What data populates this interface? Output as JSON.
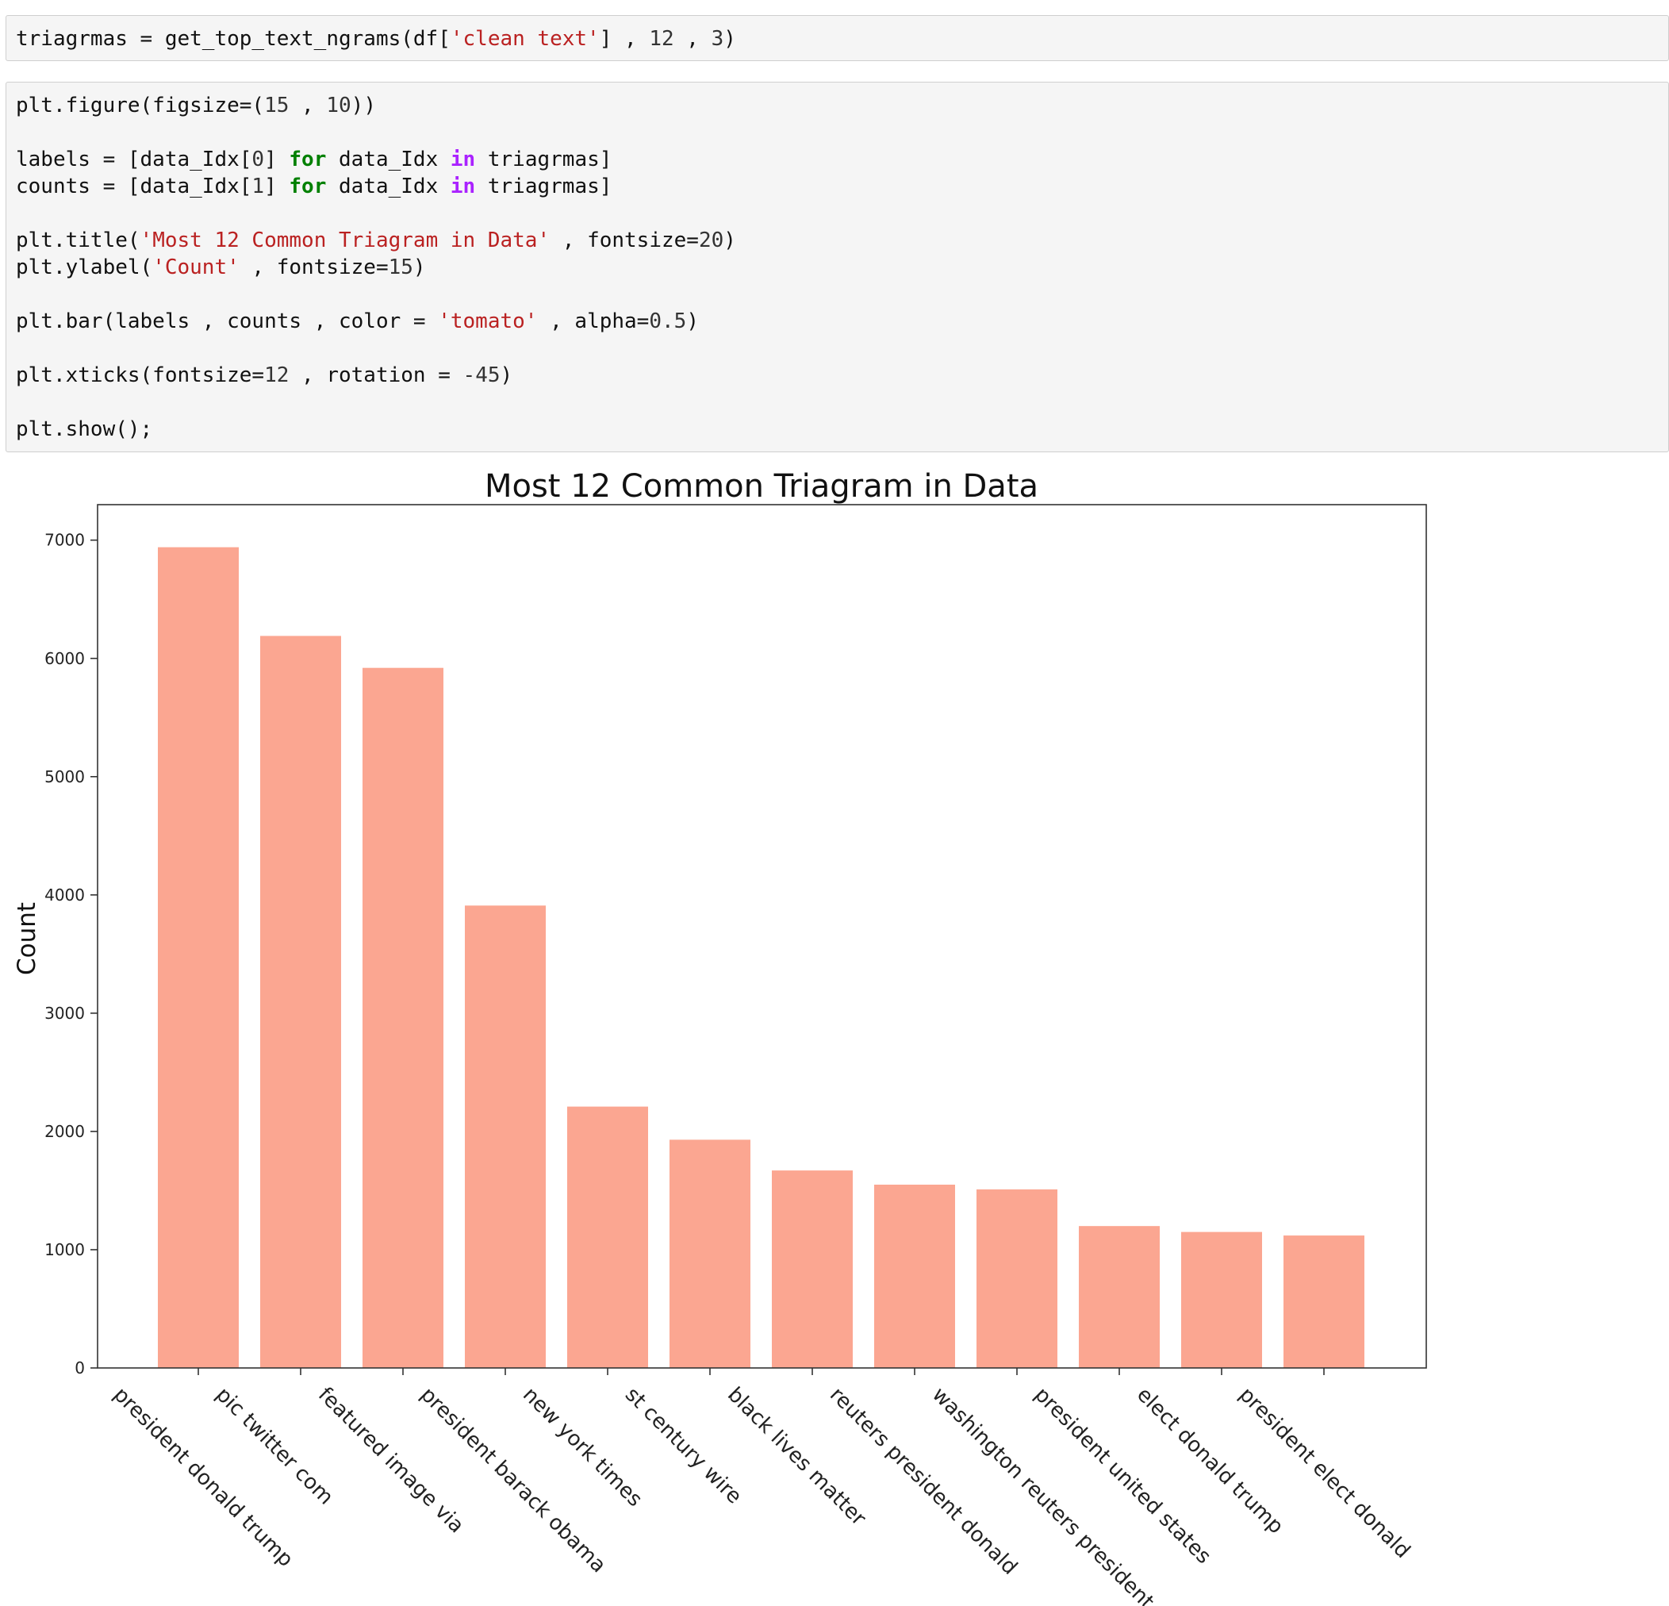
{
  "cells": {
    "cell1": {
      "lines": [
        [
          [
            "txt",
            "triagrmas = get_top_text_ngrams(df["
          ],
          [
            "str",
            "'clean text'"
          ],
          [
            "txt",
            "] , "
          ],
          [
            "num",
            "12"
          ],
          [
            "txt",
            " , "
          ],
          [
            "num",
            "3"
          ],
          [
            "txt",
            ")"
          ]
        ]
      ]
    },
    "cell2": {
      "lines": [
        [
          [
            "txt",
            "plt.figure(figsize=("
          ],
          [
            "num",
            "15"
          ],
          [
            "txt",
            " , "
          ],
          [
            "num",
            "10"
          ],
          [
            "txt",
            "))"
          ]
        ],
        [],
        [
          [
            "txt",
            "labels = [data_Idx["
          ],
          [
            "num",
            "0"
          ],
          [
            "txt",
            "] "
          ],
          [
            "kw",
            "for"
          ],
          [
            "txt",
            " data_Idx "
          ],
          [
            "op",
            "in"
          ],
          [
            "txt",
            " triagrmas]"
          ]
        ],
        [
          [
            "txt",
            "counts = [data_Idx["
          ],
          [
            "num",
            "1"
          ],
          [
            "txt",
            "] "
          ],
          [
            "kw",
            "for"
          ],
          [
            "txt",
            " data_Idx "
          ],
          [
            "op",
            "in"
          ],
          [
            "txt",
            " triagrmas]"
          ]
        ],
        [],
        [
          [
            "txt",
            "plt.title("
          ],
          [
            "str",
            "'Most 12 Common Triagram in Data'"
          ],
          [
            "txt",
            " , fontsize="
          ],
          [
            "num",
            "20"
          ],
          [
            "txt",
            ")"
          ]
        ],
        [
          [
            "txt",
            "plt.ylabel("
          ],
          [
            "str",
            "'Count'"
          ],
          [
            "txt",
            " , fontsize="
          ],
          [
            "num",
            "15"
          ],
          [
            "txt",
            ")"
          ]
        ],
        [],
        [
          [
            "txt",
            "plt.bar(labels , counts , color = "
          ],
          [
            "str",
            "'tomato'"
          ],
          [
            "txt",
            " , alpha="
          ],
          [
            "num",
            "0.5"
          ],
          [
            "txt",
            ")"
          ]
        ],
        [],
        [
          [
            "txt",
            "plt.xticks(fontsize="
          ],
          [
            "num",
            "12"
          ],
          [
            "txt",
            " , rotation = "
          ],
          [
            "num",
            "-45"
          ],
          [
            "txt",
            ")"
          ]
        ],
        [],
        [
          [
            "txt",
            "plt.show();"
          ]
        ]
      ]
    }
  },
  "chart_data": {
    "type": "bar",
    "title": "Most 12 Common Triagram in Data",
    "xlabel": "",
    "ylabel": "Count",
    "ylim": [
      0,
      7300
    ],
    "yticks": [
      0,
      1000,
      2000,
      3000,
      4000,
      5000,
      6000,
      7000
    ],
    "bar_color": "#fa8062",
    "bar_opacity": 0.7,
    "grid": false,
    "categories": [
      "president donald trump",
      "pic twitter com",
      "featured image via",
      "president barack obama",
      "new york times",
      "st century wire",
      "black lives matter",
      "reuters president donald",
      "washington reuters president",
      "president united states",
      "elect donald trump",
      "president elect donald"
    ],
    "values": [
      6940,
      6190,
      5920,
      3910,
      2210,
      1930,
      1670,
      1550,
      1510,
      1200,
      1150,
      1120
    ]
  }
}
